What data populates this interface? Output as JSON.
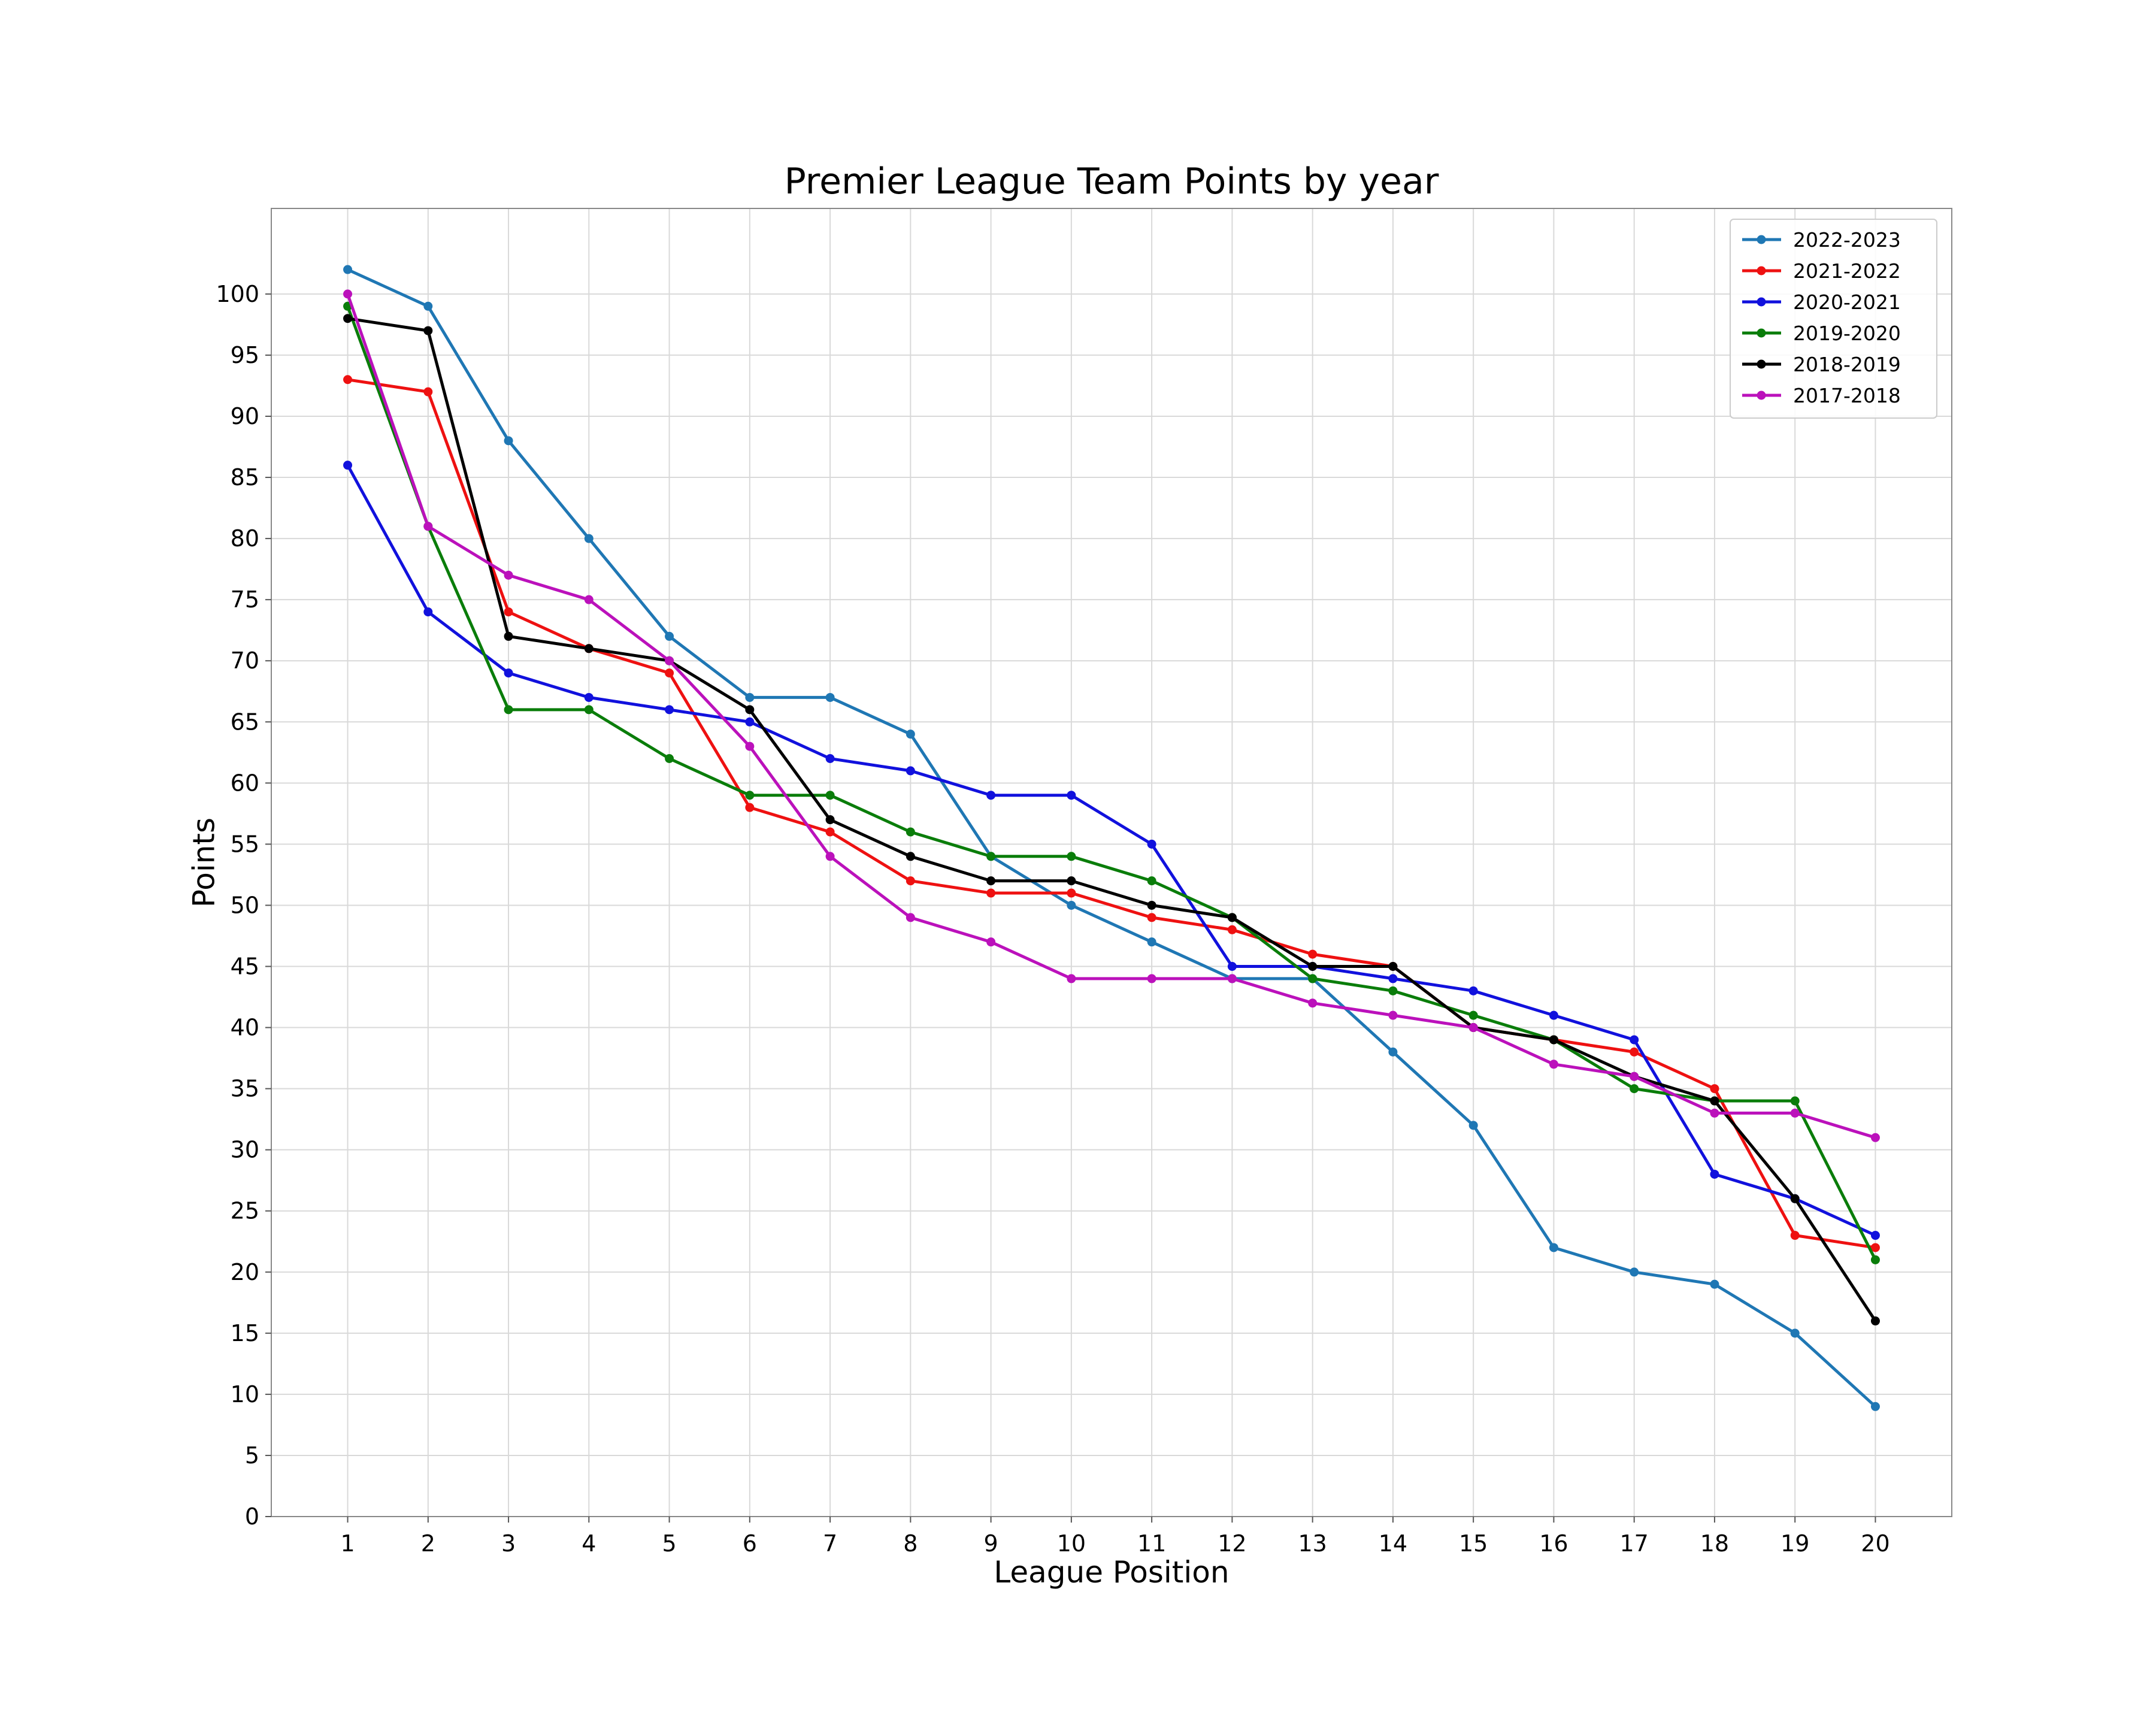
{
  "chart_data": {
    "type": "line",
    "title": "Premier League Team Points by year",
    "xlabel": "League Position",
    "ylabel": "Points",
    "x": [
      1,
      2,
      3,
      4,
      5,
      6,
      7,
      8,
      9,
      10,
      11,
      12,
      13,
      14,
      15,
      16,
      17,
      18,
      19,
      20
    ],
    "xlim": [
      0.05,
      20.95
    ],
    "ylim": [
      0,
      107
    ],
    "yticks": [
      0,
      5,
      10,
      15,
      20,
      25,
      30,
      35,
      40,
      45,
      50,
      55,
      60,
      65,
      70,
      75,
      80,
      85,
      90,
      95,
      100
    ],
    "grid": true,
    "legend_position": "top-right",
    "series": [
      {
        "name": "2022-2023",
        "color": "#1f77b4",
        "values": [
          102,
          99,
          88,
          80,
          72,
          67,
          67,
          64,
          54,
          50,
          47,
          44,
          44,
          38,
          32,
          22,
          20,
          19,
          15,
          9
        ]
      },
      {
        "name": "2021-2022",
        "color": "#ee1111",
        "values": [
          93,
          92,
          74,
          71,
          69,
          58,
          56,
          52,
          51,
          51,
          49,
          48,
          46,
          45,
          40,
          39,
          38,
          35,
          23,
          22
        ]
      },
      {
        "name": "2020-2021",
        "color": "#1111dd",
        "values": [
          86,
          74,
          69,
          67,
          66,
          65,
          62,
          61,
          59,
          59,
          55,
          45,
          45,
          44,
          43,
          41,
          39,
          28,
          26,
          23
        ]
      },
      {
        "name": "2019-2020",
        "color": "#0a7d0a",
        "values": [
          99,
          81,
          66,
          66,
          62,
          59,
          59,
          56,
          54,
          54,
          52,
          49,
          44,
          43,
          41,
          39,
          35,
          34,
          34,
          21
        ]
      },
      {
        "name": "2018-2019",
        "color": "#000000",
        "values": [
          98,
          97,
          72,
          71,
          70,
          66,
          57,
          54,
          52,
          52,
          50,
          49,
          45,
          45,
          40,
          39,
          36,
          34,
          26,
          16
        ]
      },
      {
        "name": "2017-2018",
        "color": "#bb11bb",
        "values": [
          100,
          81,
          77,
          75,
          70,
          63,
          54,
          49,
          47,
          44,
          44,
          44,
          42,
          41,
          40,
          37,
          36,
          33,
          33,
          31
        ]
      }
    ]
  }
}
